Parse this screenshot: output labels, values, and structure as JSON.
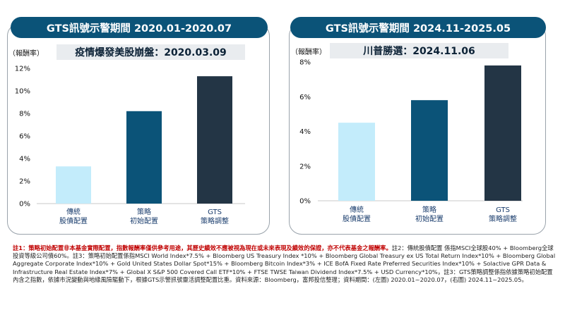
{
  "chart_data": [
    {
      "type": "bar",
      "title": "GTS訊號示警期間 2020.01-2020.07",
      "subtitle": "疫情爆發美股崩盤：2020.03.09",
      "ylabel": "（報酬率）",
      "categories": [
        [
          "傳統",
          "股債配置"
        ],
        [
          "策略",
          "初始配置"
        ],
        [
          "GTS",
          "策略調整"
        ]
      ],
      "values": [
        3.3,
        8.2,
        11.3
      ],
      "ylim": [
        0,
        12
      ],
      "yticks": [
        "0%",
        "2%",
        "4%",
        "6%",
        "8%",
        "10%",
        "12%"
      ],
      "colors": [
        "#c3ecfb",
        "#0b5378",
        "#233545"
      ],
      "grid": false
    },
    {
      "type": "bar",
      "title": "GTS訊號示警期間 2024.11-2025.05",
      "subtitle": "川普勝選：2024.11.06",
      "ylabel": "（報酬率）",
      "categories": [
        [
          "傳統",
          "股債配置"
        ],
        [
          "策略",
          "初始配置"
        ],
        [
          "GTS",
          "策略調整"
        ]
      ],
      "values": [
        4.5,
        5.8,
        7.8
      ],
      "ylim": [
        0,
        8
      ],
      "yticks": [
        "0%",
        "2%",
        "4%",
        "6%",
        "8%"
      ],
      "colors": [
        "#c3ecfb",
        "#0b5378",
        "#233545"
      ],
      "grid": false
    }
  ],
  "notes": {
    "red": "註1：策略初始配置非本基金實際配置，指數報酬率僅供參考用途，其歷史績效不應被視為現在或未來表現及績效的保證，亦不代表基金之報酬率。",
    "rest": "註2：傳統股債配置 係指MSCI全球股40% + Bloomberg全球投資等級公司債60%。註3：策略初始配置係指MSCI World Index*7.5% + Bloomberg US Treasury Index *10% + Bloomberg Global Treasury ex US Total Return Index*10% + Bloomberg Global Aggregate Corporate Index*10% + Gold United States Dollar Spot*15% + Bloomberg Bitcoin Index*3% + ICE BofA Fixed Rate Preferred Securities Index*10% + Solactive GPR Data & Infrastructure Real Estate Index*7% + Global X S&P 500 Covered Call ETF*10% + FTSE TWSE Taiwan Dividend Index*7.5% + USD Currency*10%，註3：GTS策略調整係指依據策略初始配置內含之指數，依據市況變動與地緣風險驅動下，根據GTS示警訊號靈活調整配置比重。資料來源：Bloomberg，富邦投信整理；資料期間：(左圖) 2020.01~2020.07，(右圖) 2024.11~2025.05。"
  }
}
